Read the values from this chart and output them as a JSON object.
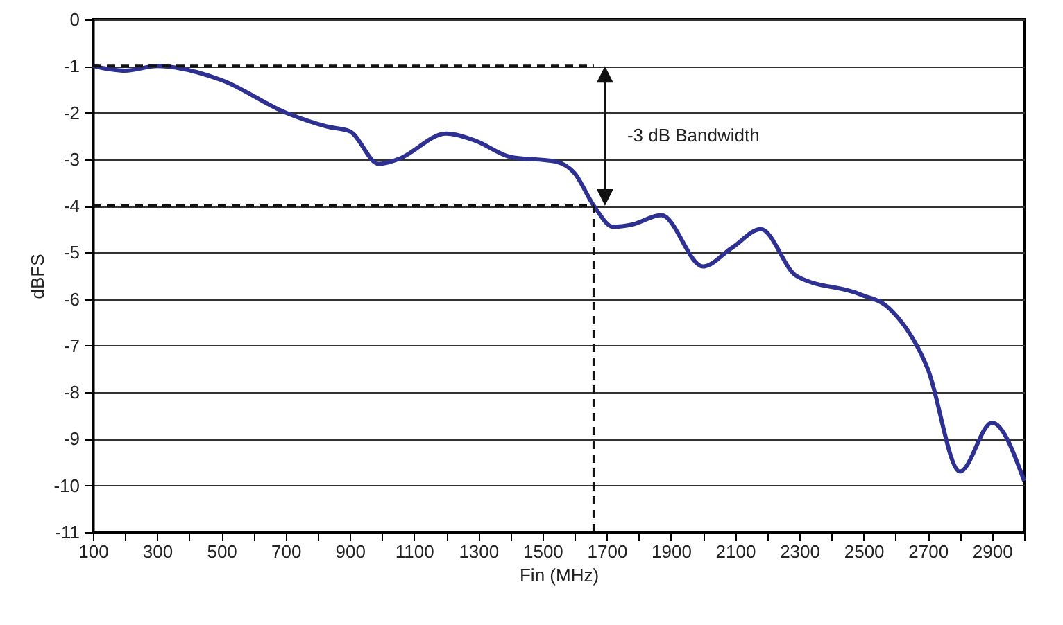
{
  "chart_data": {
    "type": "line",
    "xlabel": "Fin (MHz)",
    "ylabel": "dBFS",
    "x": [
      100,
      200,
      300,
      500,
      700,
      830,
      900,
      990,
      1050,
      1200,
      1290,
      1400,
      1540,
      1600,
      1660,
      1720,
      1780,
      1870,
      2000,
      2090,
      2180,
      2290,
      2490,
      2580,
      2700,
      2800,
      2900,
      3000
    ],
    "series": [
      {
        "color": "#2e3192",
        "values": [
          -1.0,
          -1.1,
          -1.0,
          -1.3,
          -2.0,
          -2.3,
          -2.4,
          -3.1,
          -3.0,
          -2.45,
          -2.6,
          -2.95,
          -3.05,
          -3.3,
          -4.0,
          -4.45,
          -4.4,
          -4.2,
          -5.3,
          -4.9,
          -4.5,
          -5.5,
          -5.9,
          -6.2,
          -7.5,
          -9.7,
          -8.65,
          -9.9
        ]
      }
    ],
    "xlim": [
      100,
      3000
    ],
    "xticks": [
      100,
      {
        "value": 200,
        "label": null
      },
      300,
      {
        "value": 400,
        "label": null
      },
      500,
      {
        "value": 600,
        "label": null
      },
      700,
      {
        "value": 800,
        "label": null
      },
      900,
      {
        "value": 1000,
        "label": null
      },
      1100,
      {
        "value": 1200,
        "label": null
      },
      1300,
      {
        "value": 1400,
        "label": null
      },
      1500,
      {
        "value": 1600,
        "label": null
      },
      1700,
      {
        "value": 1800,
        "label": null
      },
      1900,
      {
        "value": 2000,
        "label": null
      },
      2100,
      {
        "value": 2200,
        "label": null
      },
      2300,
      {
        "value": 2400,
        "label": null
      },
      2500,
      {
        "value": 2600,
        "label": null
      },
      2700,
      {
        "value": 2800,
        "label": null
      },
      2900,
      {
        "value": 3000,
        "label": null
      }
    ],
    "ylim": [
      -11,
      0
    ],
    "yticks": [
      -11,
      -10,
      -9,
      -8,
      -7,
      -6,
      -5,
      -4,
      -3,
      -2,
      -1,
      0
    ],
    "grid": "y",
    "line_style": "solid",
    "marker": "none",
    "ref_lines": [
      {
        "axis": "y",
        "value": -1,
        "line_style": "dashed"
      },
      {
        "axis": "y",
        "value": -4,
        "line_style": "dashed"
      },
      {
        "axis": "x",
        "value": 1660,
        "line_style": "dashed"
      }
    ],
    "annotations": [
      "-3 dB Bandwidth"
    ]
  }
}
